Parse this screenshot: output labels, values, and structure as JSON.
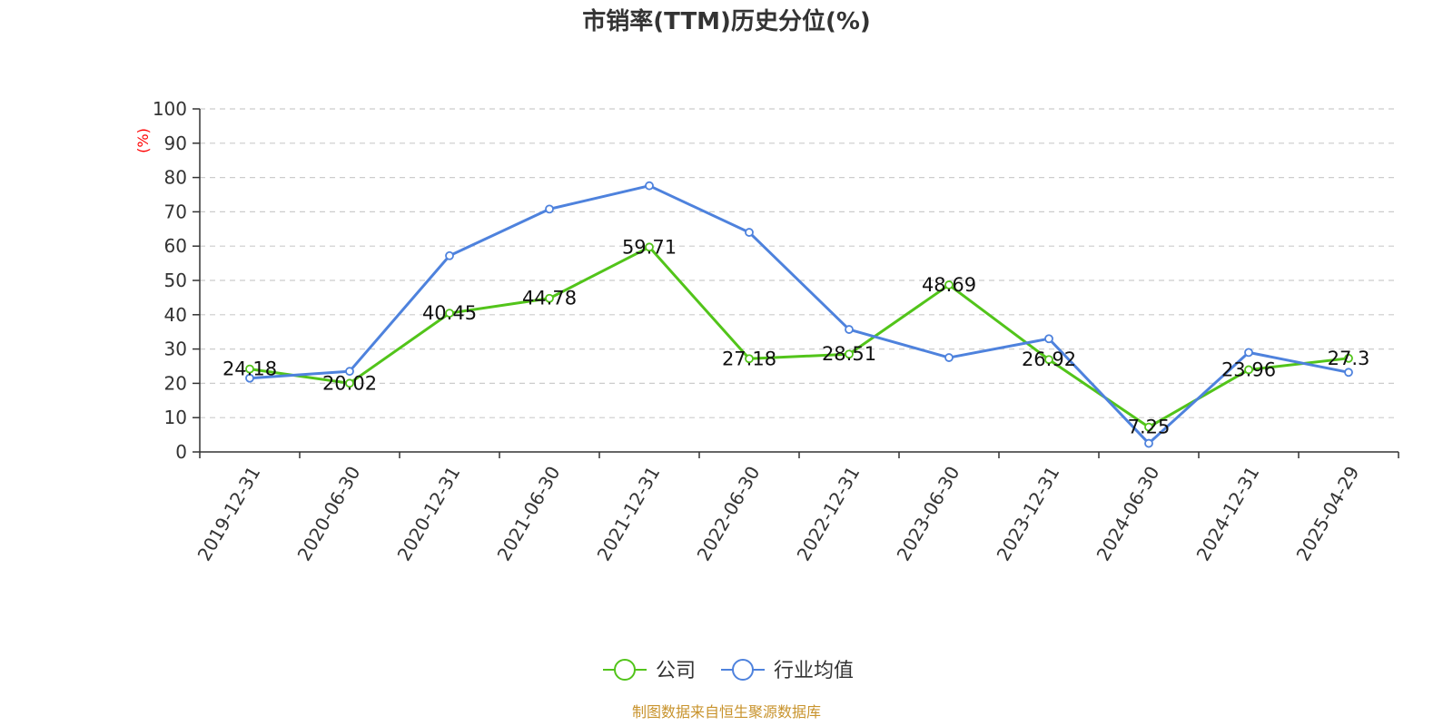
{
  "colors": {
    "company": "#52c41a",
    "industry": "#4e82dd",
    "source": "#c8932c",
    "unit": "#ff0000"
  },
  "chart_data": {
    "type": "line",
    "title": "市销率(TTM)历史分位(%)",
    "ylabel": "(%)",
    "ylim": [
      0,
      100
    ],
    "yticks": [
      "0",
      "10",
      "20",
      "30",
      "40",
      "50",
      "60",
      "70",
      "80",
      "90",
      "100"
    ],
    "grid": true,
    "legend_position": "bottom",
    "categories": [
      "2019-12-31",
      "2020-06-30",
      "2020-12-31",
      "2021-06-30",
      "2021-12-31",
      "2022-06-30",
      "2022-12-31",
      "2023-06-30",
      "2023-12-31",
      "2024-06-30",
      "2024-12-31",
      "2025-04-29"
    ],
    "series": [
      {
        "name": "公司",
        "values": [
          24.18,
          20.02,
          40.45,
          44.78,
          59.71,
          27.18,
          28.51,
          48.69,
          26.92,
          7.25,
          23.96,
          27.3
        ],
        "labels": [
          "24.18",
          "20.02",
          "40.45",
          "44.78",
          "59.71",
          "27.18",
          "28.51",
          "48.69",
          "26.92",
          "7.25",
          "23.96",
          "27.3"
        ]
      },
      {
        "name": "行业均值",
        "values": [
          21.5,
          23.5,
          57.2,
          70.8,
          77.6,
          64.0,
          35.7,
          27.5,
          33.0,
          2.5,
          29.0,
          23.2
        ]
      }
    ],
    "source": "制图数据来自恒生聚源数据库"
  }
}
